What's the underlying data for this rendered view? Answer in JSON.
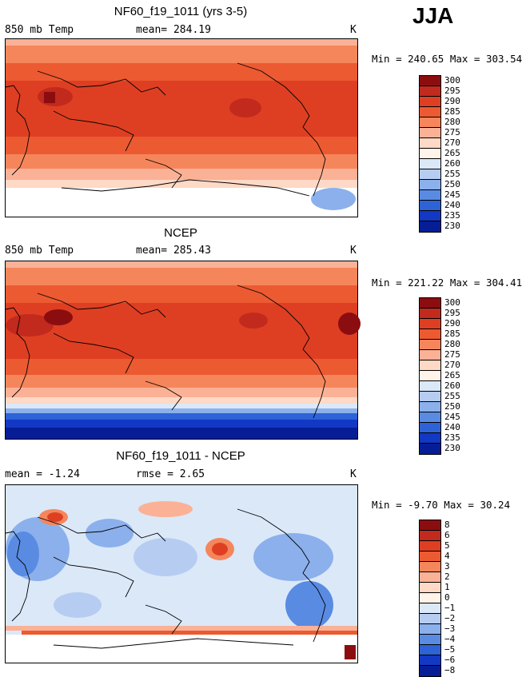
{
  "season": "JJA",
  "chart_data": [
    {
      "type": "heatmap",
      "title": "NF60_f19_1011 (yrs 3-5)",
      "variable_label": "850 mb Temp",
      "mean_text": "mean= 284.19",
      "units": "K",
      "minmax_text": "Min = 240.65 Max = 303.54",
      "colorbar_levels": [
        "300",
        "295",
        "290",
        "285",
        "280",
        "275",
        "270",
        "265",
        "260",
        "255",
        "250",
        "245",
        "240",
        "235",
        "230"
      ],
      "colorbar_colors": [
        "#8c0d10",
        "#c22a1d",
        "#de3f22",
        "#ec5a32",
        "#f5865c",
        "#fbb196",
        "#fdd9c6",
        "#fff3ea",
        "#dbe8f8",
        "#b6ccf1",
        "#8bb0ec",
        "#5a8be3",
        "#2e62d7",
        "#1238c4",
        "#061d96"
      ]
    },
    {
      "type": "heatmap",
      "title": "NCEP",
      "variable_label": "850 mb Temp",
      "mean_text": "mean= 285.43",
      "units": "K",
      "minmax_text": "Min = 221.22 Max = 304.41",
      "colorbar_levels": [
        "300",
        "295",
        "290",
        "285",
        "280",
        "275",
        "270",
        "265",
        "260",
        "255",
        "250",
        "245",
        "240",
        "235",
        "230"
      ],
      "colorbar_colors": [
        "#8c0d10",
        "#c22a1d",
        "#de3f22",
        "#ec5a32",
        "#f5865c",
        "#fbb196",
        "#fdd9c6",
        "#fff3ea",
        "#dbe8f8",
        "#b6ccf1",
        "#8bb0ec",
        "#5a8be3",
        "#2e62d7",
        "#1238c4",
        "#061d96"
      ]
    },
    {
      "type": "heatmap",
      "title": "NF60_f19_1011 - NCEP",
      "mean_text": "mean =  -1.24",
      "rmse_text": "rmse =   2.65",
      "units": "K",
      "minmax_text": "Min =  -9.70 Max =  30.24",
      "colorbar_levels": [
        "8",
        "6",
        "5",
        "4",
        "3",
        "2",
        "1",
        "0",
        "−1",
        "−2",
        "−3",
        "−4",
        "−5",
        "−6",
        "−8"
      ],
      "colorbar_colors": [
        "#8c0d10",
        "#c22a1d",
        "#de3f22",
        "#ec5a32",
        "#f5865c",
        "#fbb196",
        "#fdd9c6",
        "#fff3ea",
        "#dbe8f8",
        "#b6ccf1",
        "#8bb0ec",
        "#5a8be3",
        "#2e62d7",
        "#1238c4",
        "#061d96"
      ]
    }
  ]
}
